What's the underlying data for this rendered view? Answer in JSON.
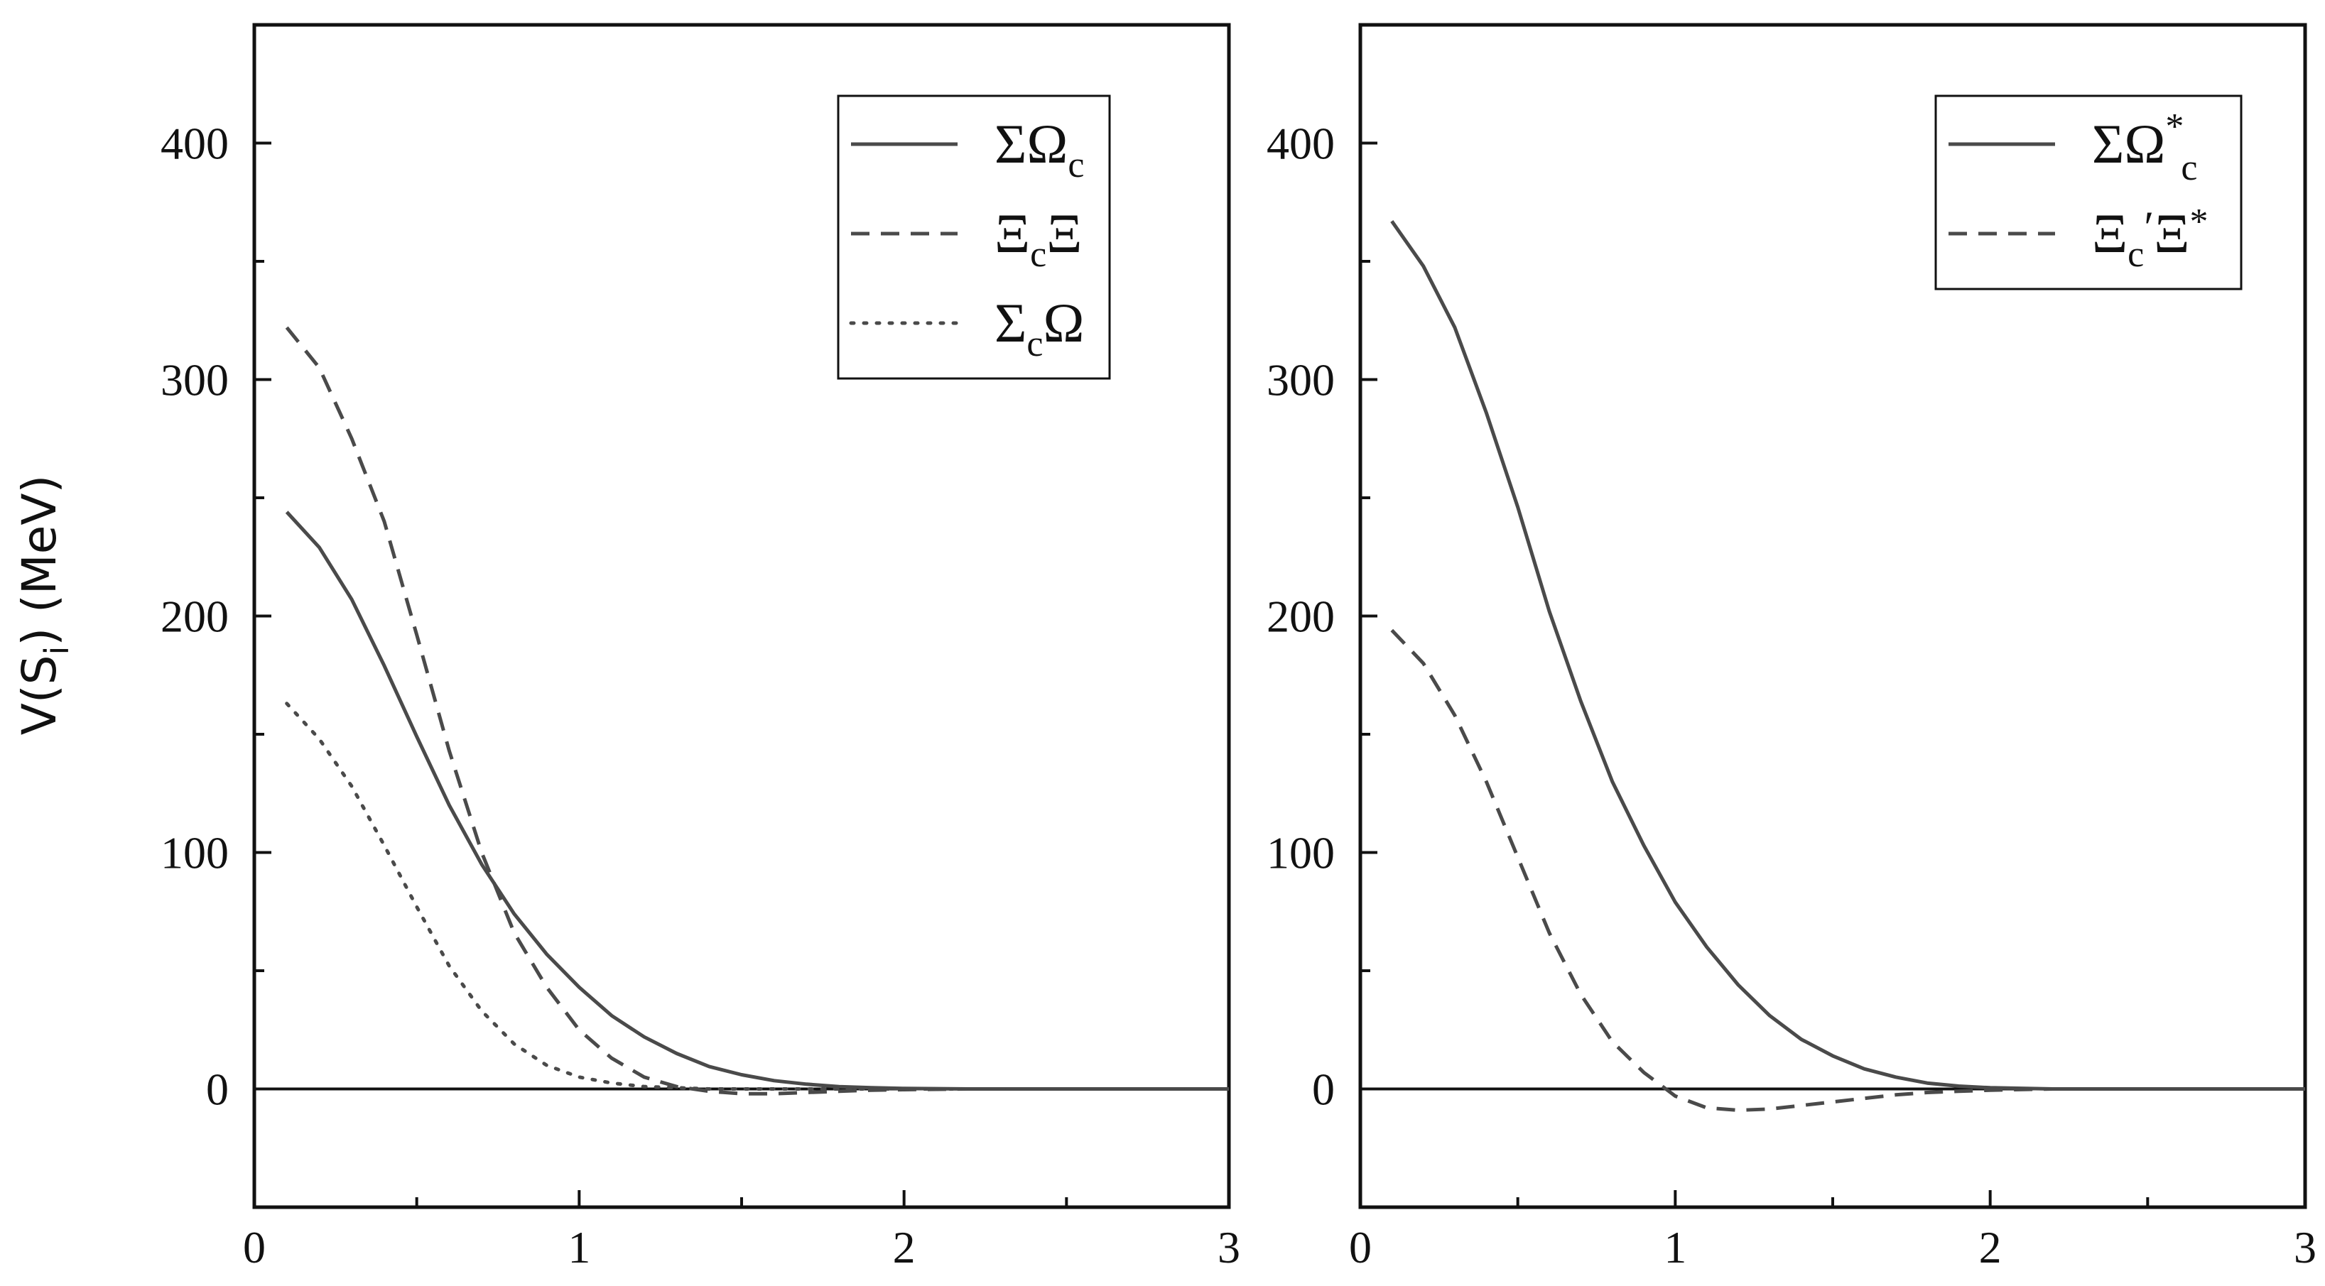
{
  "chart_data": [
    {
      "type": "line",
      "title": "",
      "xlabel": "",
      "ylabel": {
        "main": "V(S",
        "sub": "i",
        "end": ") (MeV)"
      },
      "xlim": [
        0,
        3
      ],
      "ylim": [
        -50,
        450
      ],
      "x_ticks": [
        0,
        1,
        2,
        3
      ],
      "x_tick_labels": [
        "0",
        "1",
        "2",
        "3"
      ],
      "y_ticks": [
        0,
        100,
        200,
        300,
        400
      ],
      "y_tick_labels": [
        "0",
        "100",
        "200",
        "300",
        "400"
      ],
      "zero_line": true,
      "grid": false,
      "legend_position": "top-right",
      "series": [
        {
          "name": "ΣΩc",
          "legend": {
            "main": "ΣΩ",
            "sub": "c",
            "sup": ""
          },
          "style": "solid",
          "x": [
            0.1,
            0.2,
            0.3,
            0.4,
            0.5,
            0.6,
            0.7,
            0.8,
            0.9,
            1.0,
            1.1,
            1.2,
            1.3,
            1.4,
            1.5,
            1.6,
            1.7,
            1.8,
            1.9,
            2.0,
            2.2,
            2.5,
            3.0
          ],
          "y": [
            244,
            229,
            207,
            179,
            149,
            120,
            95,
            74,
            57,
            43,
            31,
            22,
            15,
            9.5,
            6,
            3.5,
            2,
            1,
            0.5,
            0.2,
            0,
            0,
            0
          ]
        },
        {
          "name": "ΞcΞ",
          "legend": {
            "main": "Ξ",
            "sub": "c",
            "end": "Ξ"
          },
          "style": "dashed",
          "x": [
            0.1,
            0.2,
            0.3,
            0.4,
            0.5,
            0.6,
            0.7,
            0.8,
            0.9,
            1.0,
            1.1,
            1.2,
            1.3,
            1.4,
            1.5,
            1.6,
            1.7,
            1.8,
            1.9,
            2.0,
            2.2,
            2.5,
            3.0
          ],
          "y": [
            322,
            305,
            275,
            240,
            192,
            143,
            100,
            66,
            43,
            25,
            13,
            5,
            1,
            -1,
            -2,
            -2,
            -1.5,
            -1,
            -0.5,
            -0.3,
            0,
            0,
            0
          ]
        },
        {
          "name": "ΣcΩ",
          "legend": {
            "main": "Σ",
            "sub": "c",
            "end": "Ω"
          },
          "style": "dotted",
          "x": [
            0.1,
            0.2,
            0.3,
            0.4,
            0.5,
            0.6,
            0.7,
            0.8,
            0.9,
            1.0,
            1.1,
            1.2,
            1.3,
            1.4,
            1.5,
            1.6,
            2.0,
            2.5,
            3.0
          ],
          "y": [
            163,
            148,
            128,
            103,
            77,
            52,
            33,
            19,
            10,
            5,
            2.5,
            1,
            0.5,
            0,
            0,
            0,
            0,
            0,
            0
          ]
        }
      ]
    },
    {
      "type": "line",
      "title": "",
      "xlabel": "",
      "ylabel": "",
      "xlim": [
        0,
        3
      ],
      "ylim": [
        -50,
        450
      ],
      "x_ticks": [
        0,
        1,
        2,
        3
      ],
      "x_tick_labels": [
        "0",
        "1",
        "2",
        "3"
      ],
      "y_ticks": [
        0,
        100,
        200,
        300,
        400
      ],
      "y_tick_labels": [
        "0",
        "100",
        "200",
        "300",
        "400"
      ],
      "zero_line": true,
      "grid": false,
      "legend_position": "top-right",
      "series": [
        {
          "name": "ΣΩ*c",
          "legend": {
            "main": "ΣΩ",
            "sup": "*",
            "sub": "c"
          },
          "style": "solid",
          "x": [
            0.1,
            0.2,
            0.3,
            0.4,
            0.5,
            0.6,
            0.7,
            0.8,
            0.9,
            1.0,
            1.1,
            1.2,
            1.3,
            1.4,
            1.5,
            1.6,
            1.7,
            1.8,
            1.9,
            2.0,
            2.2,
            2.5,
            3.0
          ],
          "y": [
            367,
            348,
            322,
            286,
            246,
            202,
            164,
            130,
            103,
            79,
            60,
            44,
            31,
            21,
            14,
            8.5,
            5,
            2.5,
            1.2,
            0.5,
            0,
            0,
            0
          ]
        },
        {
          "name": "Ξc′Ξ*",
          "legend": {
            "main": "Ξ",
            "sub": "c",
            "prime": "′",
            "end": "Ξ",
            "sup": "*"
          },
          "style": "dashed",
          "x": [
            0.1,
            0.2,
            0.3,
            0.4,
            0.5,
            0.6,
            0.7,
            0.8,
            0.9,
            0.95,
            1.0,
            1.1,
            1.2,
            1.3,
            1.4,
            1.5,
            1.6,
            1.7,
            1.8,
            1.9,
            2.0,
            2.2,
            2.5,
            3.0
          ],
          "y": [
            194,
            180,
            158,
            130,
            98,
            66,
            40,
            20,
            7,
            2,
            -3,
            -8,
            -9,
            -8.5,
            -7,
            -5.5,
            -4,
            -2.5,
            -1.5,
            -1,
            -0.5,
            0,
            0,
            0
          ]
        }
      ]
    }
  ]
}
